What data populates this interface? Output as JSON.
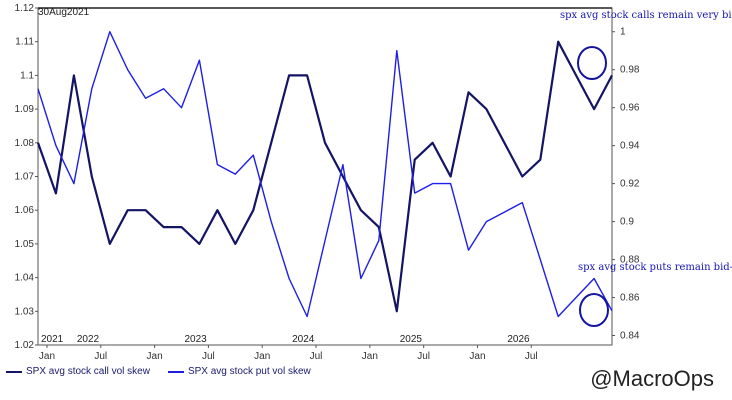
{
  "chart_data": {
    "type": "line",
    "header_date": "30Aug2021",
    "left_axis": {
      "ylim": [
        1.02,
        1.12
      ],
      "ticks": [
        "1.12",
        "1.11",
        "1.1",
        "1.09",
        "1.08",
        "1.07",
        "1.06",
        "1.05",
        "1.04",
        "1.03",
        "1.02"
      ]
    },
    "right_axis": {
      "ylim": [
        0.835,
        1.0125
      ],
      "ticks": [
        "1",
        "0.98",
        "0.96",
        "0.94",
        "0.92",
        "0.9",
        "0.88",
        "0.86",
        "0.84"
      ]
    },
    "x_month_labels": [
      "Jan",
      "Jul",
      "Jan",
      "Jul",
      "Jan",
      "Jul",
      "Jan",
      "Jul",
      "Jan",
      "Jul"
    ],
    "x_year_labels": [
      "2021",
      "2022",
      "2023",
      "2024",
      "2025",
      "2026"
    ],
    "series": [
      {
        "name": "SPX avg stock call vol skew",
        "axis": "left",
        "color": "#141464",
        "x": [
          0,
          2,
          4,
          6,
          8,
          10,
          12,
          14,
          16,
          18,
          20,
          22,
          24,
          26,
          28,
          30,
          32,
          34,
          36,
          38,
          40,
          42,
          44,
          46,
          48,
          50,
          52,
          54,
          56,
          58,
          60,
          62,
          64
        ],
        "values": [
          1.08,
          1.065,
          1.1,
          1.07,
          1.05,
          1.06,
          1.06,
          1.055,
          1.055,
          1.05,
          1.06,
          1.05,
          1.06,
          1.08,
          1.1,
          1.1,
          1.08,
          1.07,
          1.06,
          1.055,
          1.03,
          1.075,
          1.08,
          1.07,
          1.095,
          1.09,
          1.08,
          1.07,
          1.075,
          1.11,
          1.1,
          1.09,
          1.1
        ]
      },
      {
        "name": "SPX avg stock put vol skew",
        "axis": "right",
        "color": "#1e1ee6",
        "x": [
          0,
          2,
          4,
          6,
          8,
          10,
          12,
          14,
          16,
          18,
          20,
          22,
          24,
          26,
          28,
          30,
          32,
          34,
          36,
          38,
          40,
          42,
          44,
          46,
          48,
          50,
          52,
          54,
          56,
          58,
          60,
          62,
          64
        ],
        "values": [
          0.97,
          0.94,
          0.92,
          0.97,
          1.0,
          0.98,
          0.965,
          0.97,
          0.96,
          0.985,
          0.93,
          0.925,
          0.935,
          0.9,
          0.87,
          0.85,
          0.89,
          0.93,
          0.87,
          0.89,
          0.99,
          0.915,
          0.92,
          0.92,
          0.885,
          0.9,
          0.905,
          0.91,
          0.88,
          0.85,
          0.86,
          0.87,
          0.853
        ]
      }
    ],
    "annotations": {
      "calls": "spx avg stock calls remain very bid",
      "puts": "spx avg stock puts remain bid-less"
    }
  },
  "watermark": "@MacroOps"
}
